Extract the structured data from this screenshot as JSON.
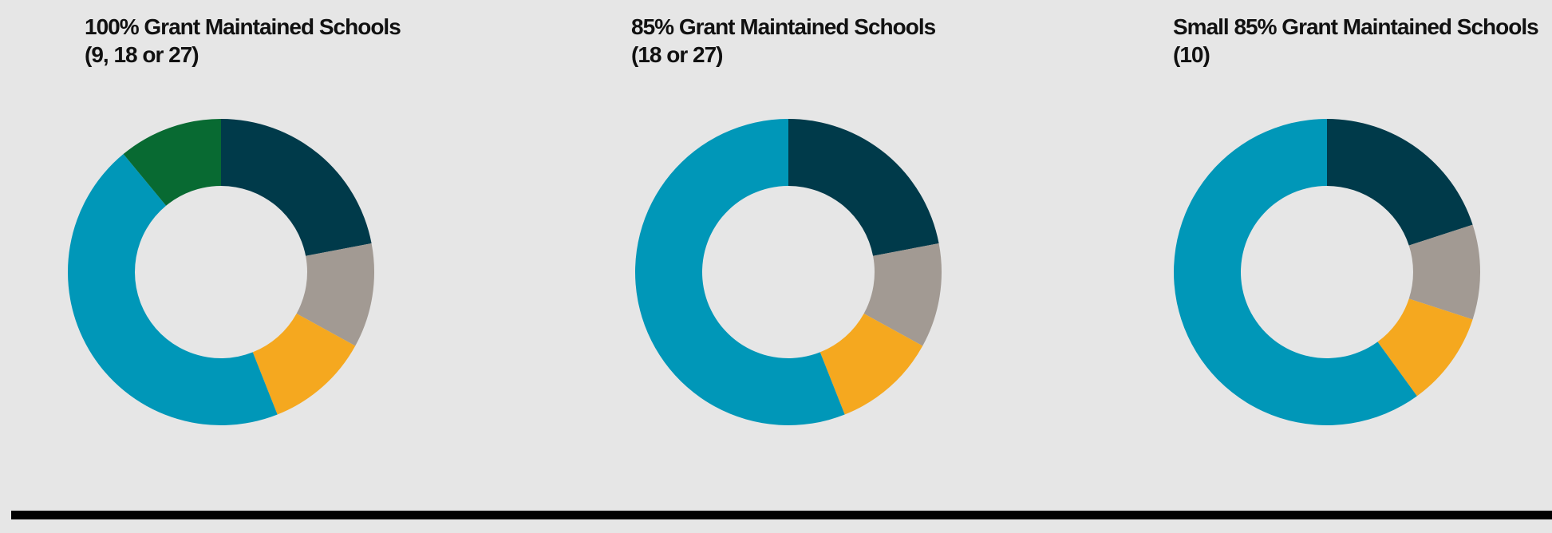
{
  "colors": {
    "background": "#e6e6e6",
    "rule": "#000000",
    "slice_colors": [
      "#003a4a",
      "#a29a93",
      "#f5a81f",
      "#0097b8",
      "#086a32"
    ]
  },
  "chart_data": [
    {
      "type": "pie",
      "donut": true,
      "title_line1": "100% Grant Maintained Schools",
      "title_line2": "(9, 18 or 27)",
      "values": [
        22,
        11,
        11,
        45,
        11
      ],
      "colors": [
        "#003a4a",
        "#a29a93",
        "#f5a81f",
        "#0097b8",
        "#086a32"
      ],
      "start_angle_deg": 0,
      "clockwise": true,
      "legend": "none"
    },
    {
      "type": "pie",
      "donut": true,
      "title_line1": "85% Grant Maintained Schools",
      "title_line2": "(18 or 27)",
      "values": [
        22,
        11,
        11,
        56
      ],
      "colors": [
        "#003a4a",
        "#a29a93",
        "#f5a81f",
        "#0097b8"
      ],
      "start_angle_deg": 0,
      "clockwise": true,
      "legend": "none"
    },
    {
      "type": "pie",
      "donut": true,
      "title_line1": "Small 85% Grant Maintained Schools",
      "title_line2": "(10)",
      "values": [
        20,
        10,
        10,
        60
      ],
      "colors": [
        "#003a4a",
        "#a29a93",
        "#f5a81f",
        "#0097b8"
      ],
      "start_angle_deg": 0,
      "clockwise": true,
      "legend": "none"
    }
  ]
}
